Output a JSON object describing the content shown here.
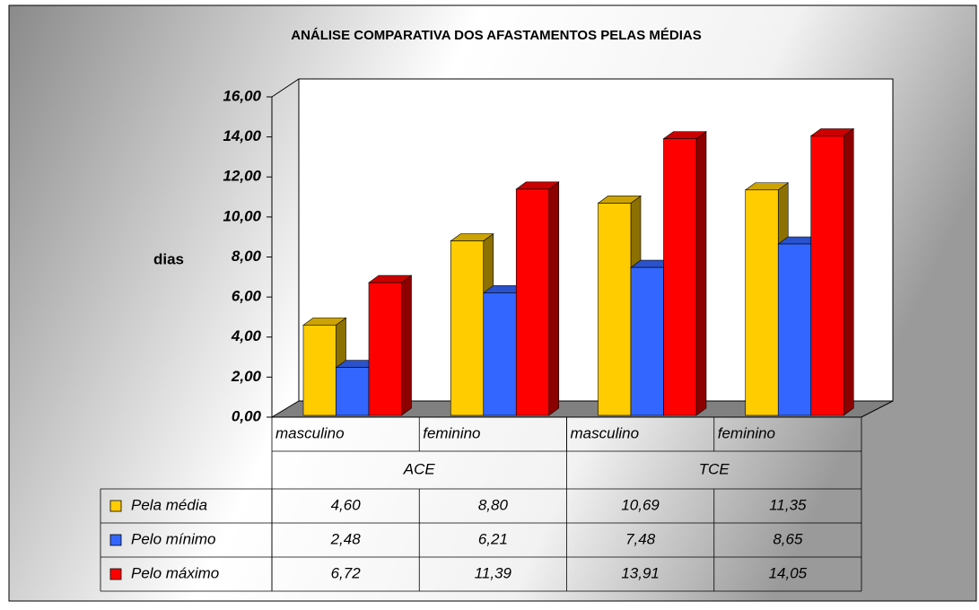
{
  "chart_data": {
    "type": "bar3d",
    "title": "ANÁLISE COMPARATIVA DOS AFASTAMENTOS PELAS MÉDIAS",
    "y_label": "dias",
    "categories": [
      "masculino",
      "feminino",
      "masculino",
      "feminino"
    ],
    "groups": [
      "ACE",
      "TCE"
    ],
    "series": [
      {
        "name": "Pela média",
        "color": "#FFCC00",
        "values": [
          4.6,
          8.8,
          10.69,
          11.35
        ],
        "value_labels": [
          "4,60",
          "8,80",
          "10,69",
          "11,35"
        ]
      },
      {
        "name": "Pelo mínimo",
        "color": "#3366FF",
        "values": [
          2.48,
          6.21,
          7.48,
          8.65
        ],
        "value_labels": [
          "2,48",
          "6,21",
          "7,48",
          "8,65"
        ]
      },
      {
        "name": "Pelo máximo",
        "color": "#FF0000",
        "values": [
          6.72,
          11.39,
          13.91,
          14.05
        ],
        "value_labels": [
          "6,72",
          "11,39",
          "13,91",
          "14,05"
        ]
      }
    ],
    "ylim": [
      0,
      16
    ],
    "yticks": [
      {
        "value": 0,
        "label": "0,00"
      },
      {
        "value": 2,
        "label": "2,00"
      },
      {
        "value": 4,
        "label": "4,00"
      },
      {
        "value": 6,
        "label": "6,00"
      },
      {
        "value": 8,
        "label": "8,00"
      },
      {
        "value": 10,
        "label": "10,00"
      },
      {
        "value": 12,
        "label": "12,00"
      },
      {
        "value": 14,
        "label": "14,00"
      },
      {
        "value": 16,
        "label": "16,00"
      }
    ],
    "data_table": true
  }
}
